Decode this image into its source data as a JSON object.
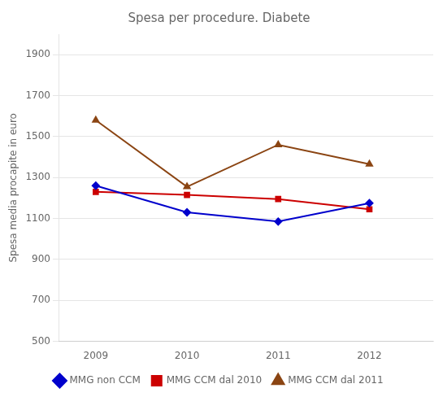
{
  "chart_data": {
    "type": "line",
    "title": "Spesa per procedure. Diabete",
    "ylabel": "Spesa media procapite in euro",
    "x": [
      2009,
      2010,
      2011,
      2012
    ],
    "series": [
      {
        "name": "MMG non CCM",
        "color": "#0000CC",
        "marker": "diamond",
        "values": [
          1260,
          1130,
          1085,
          1175
        ]
      },
      {
        "name": "MMG CCM dal 2010",
        "color": "#CC0000",
        "marker": "square",
        "values": [
          1230,
          1215,
          1195,
          1145
        ]
      },
      {
        "name": "MMG CCM dal 2011",
        "color": "#8B4513",
        "marker": "triangle",
        "values": [
          1580,
          1255,
          1460,
          1365
        ]
      }
    ],
    "xlim": [
      2008.6,
      2012.7
    ],
    "xticks": [
      2009,
      2010,
      2011,
      2012
    ],
    "ylim": [
      500,
      2000
    ],
    "yticks": [
      500,
      700,
      900,
      1100,
      1300,
      1500,
      1700,
      1900
    ],
    "grid": "y",
    "legend": "bottom"
  }
}
